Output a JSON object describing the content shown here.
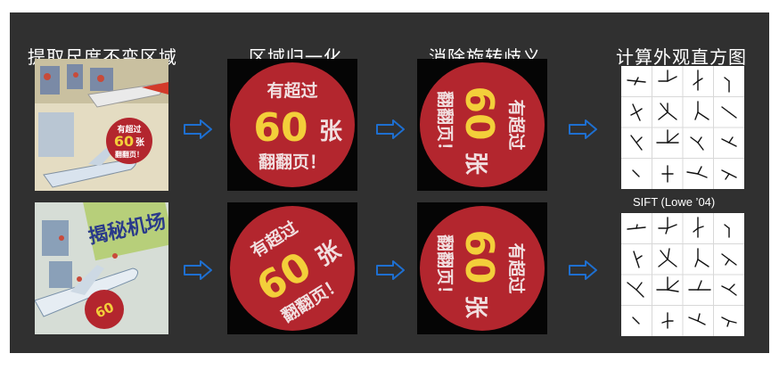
{
  "headers": {
    "h1": "提取尺度不变区域",
    "h2": "区域归一化",
    "h3": "消除旋转歧义",
    "h4": "计算外观直方图"
  },
  "sticker": {
    "line1": "有超过",
    "number": "60",
    "unit": "张",
    "line3": "翻翻页！"
  },
  "book": {
    "title": "揭秘机场"
  },
  "sift_caption": "SIFT (Lowe ’04)",
  "colors": {
    "panel_bg": "#303030",
    "arrow": "#1e6fd0",
    "sticker_red": "#b3262e",
    "sticker_yellow": "#f3cf3a"
  }
}
